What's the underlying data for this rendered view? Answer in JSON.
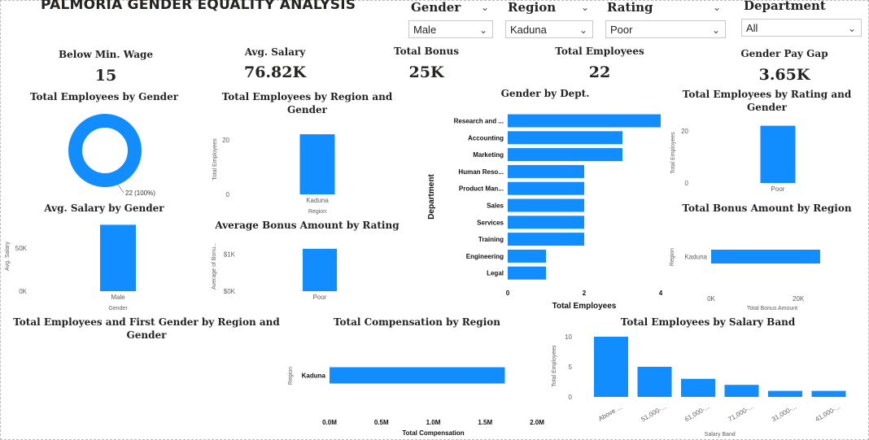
{
  "dashboard": {
    "title": "PALMORIA GENDER EQUALITY ANALYSIS"
  },
  "slicers": [
    {
      "label": "Gender",
      "value": "Male"
    },
    {
      "label": "Region",
      "value": "Kaduna"
    },
    {
      "label": "Rating",
      "value": "Poor"
    },
    {
      "label": "Department",
      "value": "All"
    }
  ],
  "cards": [
    {
      "label": "Below Min. Wage",
      "value": "15"
    },
    {
      "label": "Avg. Salary",
      "value": "76.82K"
    },
    {
      "label": "Total Bonus",
      "value": "25K"
    },
    {
      "label": "Total Employees",
      "value": "22"
    },
    {
      "label": "Gender Pay Gap",
      "value": "3.65K"
    }
  ],
  "visual_titles": {
    "emp_by_gender": "Total Employees by Gender",
    "emp_by_region_gender": "Total Employees by Region and Gender",
    "gender_by_dept": "Gender by Dept.",
    "emp_by_rating_gender": "Total Employees by Rating and Gender",
    "avg_salary_gender": "Avg. Salary by Gender",
    "avg_bonus_rating": "Average Bonus Amount by Rating",
    "bonus_by_region": "Total Bonus Amount by Region",
    "emp_first_gender": "Total Employees and First Gender by Region and Gender",
    "comp_by_region": "Total Compensation by Region",
    "emp_by_salary_band": "Total Employees by Salary Band"
  },
  "colors": {
    "accent": "#118DFF"
  },
  "chart_data": [
    {
      "id": "donut",
      "type": "pie",
      "values": [
        22
      ],
      "data_label": "22 (100%)"
    },
    {
      "id": "region_gender",
      "type": "bar",
      "categories": [
        "Kaduna"
      ],
      "values": [
        22
      ],
      "xlabel": "Region",
      "ylabel": "Total Employees",
      "ylim": [
        0,
        25
      ],
      "ticks": [
        "0",
        "20"
      ]
    },
    {
      "id": "dept",
      "type": "bar",
      "orientation": "horizontal",
      "categories": [
        "Research and ...",
        "Accounting",
        "Marketing",
        "Human Reso...",
        "Product Man...",
        "Sales",
        "Services",
        "Training",
        "Engineering",
        "Legal"
      ],
      "values": [
        4,
        3,
        3,
        2,
        2,
        2,
        2,
        2,
        1,
        1
      ],
      "xlabel": "Total Employees",
      "ylabel": "Department",
      "xlim": [
        0,
        4
      ],
      "ticks": [
        "0",
        "2",
        "4"
      ]
    },
    {
      "id": "rating_gender",
      "type": "bar",
      "categories": [
        "Poor"
      ],
      "values": [
        22
      ],
      "ylabel": "Total Employees",
      "ylim": [
        0,
        25
      ],
      "ticks": [
        "0",
        "20"
      ]
    },
    {
      "id": "avg_salary_gender",
      "type": "bar",
      "categories": [
        "Male"
      ],
      "values": [
        76820
      ],
      "xlabel": "Gender",
      "ylabel": "Avg. Salary",
      "ylim": [
        0,
        80000
      ],
      "ticks": [
        "0K",
        "50K"
      ]
    },
    {
      "id": "avg_bonus_rating",
      "type": "bar",
      "categories": [
        "Poor"
      ],
      "values": [
        1140
      ],
      "ylabel": "Average of Bonu...",
      "ylim": [
        0,
        1400
      ],
      "ticks": [
        "$0K",
        "$1K"
      ]
    },
    {
      "id": "bonus_region",
      "type": "bar",
      "orientation": "horizontal",
      "categories": [
        "Kaduna"
      ],
      "values": [
        25000
      ],
      "xlabel": "Total Bonus Amount",
      "ylabel": "Region",
      "xlim": [
        0,
        28000
      ],
      "ticks": [
        "0K",
        "20K"
      ]
    },
    {
      "id": "comp_region",
      "type": "bar",
      "orientation": "horizontal",
      "categories": [
        "Kaduna"
      ],
      "values": [
        1690000
      ],
      "xlabel": "Total Compensation",
      "ylabel": "Region",
      "xlim": [
        0,
        2000000
      ],
      "ticks": [
        "0.0M",
        "0.5M",
        "1.0M",
        "1.5M",
        "2.0M"
      ]
    },
    {
      "id": "salary_band",
      "type": "bar",
      "categories": [
        "Above ...",
        "51,000-...",
        "61,000-...",
        "71,000-...",
        "31,000-...",
        "41,000-..."
      ],
      "values": [
        10,
        5,
        3,
        2,
        1,
        1
      ],
      "xlabel": "Salary Band",
      "ylabel": "Total Employees",
      "ylim": [
        0,
        10
      ],
      "ticks": [
        "0",
        "5",
        "10"
      ]
    }
  ]
}
